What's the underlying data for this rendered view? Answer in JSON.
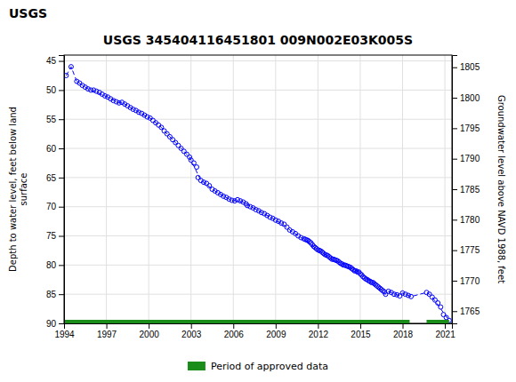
{
  "chart_data": {
    "type": "scatter",
    "title": "USGS 345404116451801 009N002E03K005S",
    "annotations": [
      "USGS"
    ],
    "y_label": "Depth to water level, feet below land\nsurface",
    "y2_label": "Groundwater level above NAVD 1988, feet",
    "xlim": [
      1994,
      2021.5
    ],
    "ylim": [
      90,
      44
    ],
    "y2lim": [
      1763,
      1807
    ],
    "xticks": [
      1994,
      1997,
      2000,
      2003,
      2006,
      2009,
      2012,
      2015,
      2018,
      2021
    ],
    "yticks": [
      45,
      50,
      55,
      60,
      65,
      70,
      75,
      80,
      85,
      90
    ],
    "y2ticks": [
      1765,
      1770,
      1775,
      1780,
      1785,
      1790,
      1795,
      1800,
      1805
    ],
    "grid": true,
    "legend": "bottom",
    "series": [
      {
        "type": "scatter",
        "marker": "circle",
        "color": "#0000FF",
        "x": [
          1994.15,
          1994.5,
          1994.9,
          1995.1,
          1995.3,
          1995.5,
          1995.7,
          1995.9,
          1996.1,
          1996.3,
          1996.5,
          1996.7,
          1996.9,
          1997.1,
          1997.3,
          1997.5,
          1997.7,
          1997.9,
          1998.1,
          1998.3,
          1998.5,
          1998.7,
          1998.9,
          1999.1,
          1999.3,
          1999.5,
          1999.7,
          1999.9,
          2000.1,
          2000.3,
          2000.5,
          2000.7,
          2000.9,
          2001.1,
          2001.3,
          2001.5,
          2001.7,
          2001.9,
          2002.1,
          2002.3,
          2002.5,
          2002.7,
          2002.9,
          2003.0,
          2003.2,
          2003.4,
          2003.5,
          2003.7,
          2003.9,
          2004.1,
          2004.3,
          2004.5,
          2004.7,
          2004.9,
          2005.1,
          2005.3,
          2005.5,
          2005.7,
          2005.9,
          2006.1,
          2006.3,
          2006.5,
          2006.7,
          2006.9,
          2007.0,
          2007.2,
          2007.4,
          2007.6,
          2007.8,
          2008.0,
          2008.2,
          2008.4,
          2008.6,
          2008.8,
          2009.0,
          2009.2,
          2009.4,
          2009.6,
          2009.8,
          2010.0,
          2010.2,
          2010.4,
          2010.6,
          2010.8,
          2011.0,
          2011.1,
          2011.2,
          2011.3,
          2011.4,
          2011.5,
          2011.6,
          2011.7,
          2011.8,
          2011.9,
          2012.0,
          2012.1,
          2012.2,
          2012.3,
          2012.4,
          2012.5,
          2012.6,
          2012.7,
          2012.8,
          2012.9,
          2013.0,
          2013.1,
          2013.2,
          2013.3,
          2013.4,
          2013.5,
          2013.6,
          2013.7,
          2013.8,
          2013.9,
          2014.0,
          2014.1,
          2014.2,
          2014.3,
          2014.4,
          2014.5,
          2014.6,
          2014.7,
          2014.8,
          2014.9,
          2015.0,
          2015.1,
          2015.2,
          2015.3,
          2015.4,
          2015.5,
          2015.6,
          2015.7,
          2015.8,
          2015.9,
          2016.0,
          2016.1,
          2016.2,
          2016.3,
          2016.4,
          2016.5,
          2016.6,
          2016.7,
          2016.8,
          2017.0,
          2017.2,
          2017.4,
          2017.6,
          2017.8,
          2018.0,
          2018.2,
          2018.4,
          2018.6,
          2019.7,
          2019.9,
          2020.1,
          2020.3,
          2020.5,
          2020.7,
          2020.9,
          2021.1,
          2021.3
        ],
        "values": [
          47.5,
          46.0,
          48.5,
          48.8,
          49.2,
          49.5,
          49.8,
          50.0,
          50.0,
          50.2,
          50.4,
          50.7,
          51.0,
          51.2,
          51.5,
          51.8,
          52.0,
          52.2,
          52.1,
          52.4,
          52.7,
          53.0,
          53.3,
          53.5,
          53.8,
          54.0,
          54.3,
          54.6,
          54.8,
          55.2,
          55.6,
          56.0,
          56.4,
          57.0,
          57.5,
          58.0,
          58.5,
          59.0,
          59.5,
          60.0,
          60.5,
          61.0,
          61.5,
          62.0,
          62.5,
          63.2,
          65.0,
          65.5,
          65.8,
          66.0,
          66.4,
          67.0,
          67.3,
          67.6,
          67.9,
          68.2,
          68.4,
          68.7,
          68.9,
          69.0,
          68.8,
          69.0,
          69.2,
          69.5,
          69.8,
          70.0,
          70.2,
          70.5,
          70.7,
          71.0,
          71.2,
          71.5,
          71.8,
          72.0,
          72.3,
          72.5,
          72.8,
          73.0,
          73.5,
          74.0,
          74.3,
          74.6,
          75.0,
          75.3,
          75.5,
          75.6,
          75.7,
          75.8,
          76.0,
          76.2,
          76.5,
          76.8,
          77.0,
          77.2,
          77.4,
          77.5,
          77.6,
          77.8,
          78.0,
          78.2,
          78.3,
          78.4,
          78.6,
          78.8,
          79.0,
          79.0,
          79.1,
          79.2,
          79.3,
          79.5,
          79.7,
          79.8,
          80.0,
          80.0,
          80.1,
          80.2,
          80.3,
          80.4,
          80.6,
          80.8,
          81.0,
          81.0,
          81.2,
          81.2,
          81.5,
          81.7,
          82.0,
          82.2,
          82.4,
          82.5,
          82.7,
          82.8,
          83.0,
          83.0,
          83.2,
          83.4,
          83.6,
          83.8,
          84.0,
          84.2,
          84.4,
          84.6,
          85.0,
          84.5,
          84.7,
          85.0,
          85.1,
          85.3,
          84.8,
          85.0,
          85.2,
          85.4,
          84.7,
          85.0,
          85.5,
          86.0,
          86.5,
          87.2,
          88.5,
          89.0,
          89.5
        ]
      },
      {
        "type": "line",
        "line_style": "dashed",
        "color": "#0000FF",
        "x": [
          1994.15,
          1994.5,
          1994.9,
          1995.7,
          1995.9,
          1996.9,
          1997.1,
          1997.9,
          1998.1,
          1998.9,
          1999.1,
          1999.9,
          2000.1,
          2000.9,
          2001.1,
          2001.9,
          2002.1,
          2002.9,
          2003.0,
          2003.7,
          2003.9,
          2004.7,
          2004.9,
          2005.7,
          2005.9,
          2006.7,
          2006.9,
          2007.8,
          2008.0,
          2008.8,
          2009.0,
          2009.8,
          2010.0,
          2010.8,
          2011.0,
          2011.9,
          2012.0,
          2012.9,
          2013.0,
          2013.9,
          2014.0,
          2014.9,
          2015.0,
          2015.9,
          2016.0,
          2016.8,
          2017.0,
          2017.8,
          2018.0,
          2018.6,
          2019.7,
          2019.9,
          2020.1,
          2021.3
        ],
        "values": [
          47.5,
          46.0,
          48.5,
          49.8,
          50.0,
          51.0,
          51.2,
          52.2,
          52.1,
          53.3,
          53.5,
          54.6,
          54.8,
          56.4,
          57.0,
          59.0,
          59.5,
          61.5,
          62.0,
          65.5,
          65.8,
          67.3,
          67.6,
          68.7,
          68.9,
          69.2,
          69.5,
          70.7,
          71.0,
          72.0,
          72.3,
          73.5,
          74.0,
          75.3,
          75.5,
          77.2,
          77.4,
          78.8,
          79.0,
          80.0,
          80.1,
          81.2,
          81.5,
          83.0,
          83.2,
          85.0,
          84.5,
          85.3,
          84.8,
          85.4,
          84.7,
          85.0,
          85.5,
          89.5
        ]
      },
      {
        "name": "Period of approved data",
        "type": "range",
        "color": "#1a8c1a",
        "x_start": [
          1994.0,
          2019.7
        ],
        "x_end": [
          2018.5,
          2021.3
        ],
        "values": [
          90.0,
          90.0
        ]
      }
    ]
  }
}
